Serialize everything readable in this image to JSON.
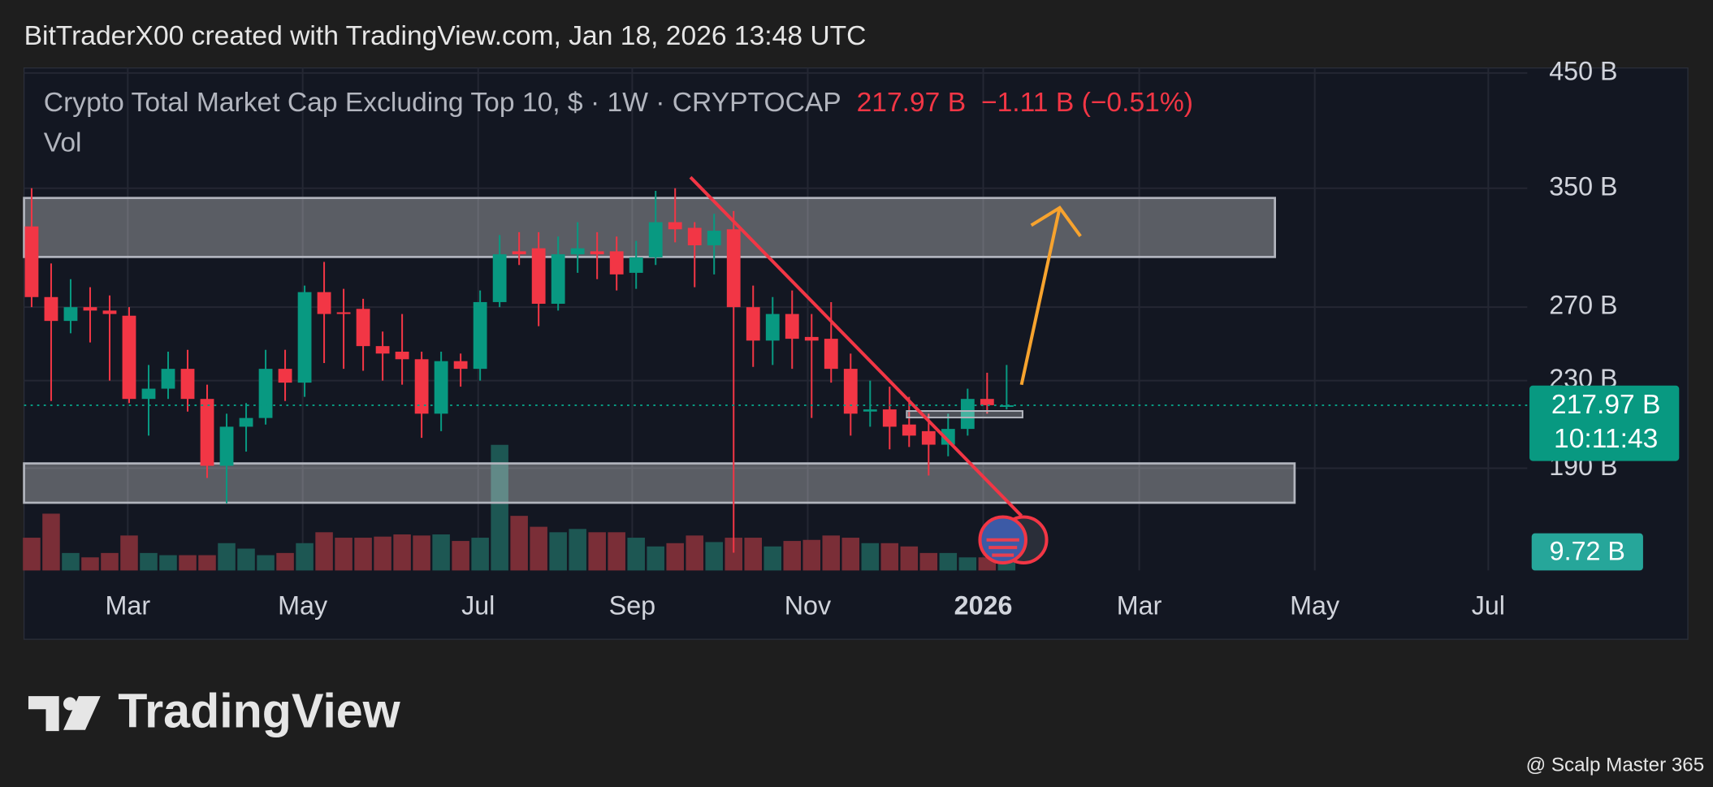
{
  "header": "BitTraderX00 created with TradingView.com, Jan 18, 2026 13:48 UTC",
  "logo": "TradingView",
  "watermark": "@ Scalp Master 365",
  "chart_data": {
    "type": "candlestick",
    "title": "Crypto Total Market Cap Excluding Top 10, $ · 1W · CRYPTOCAP",
    "price_label": "217.97 B",
    "change_label": "−1.11 B (−0.51%)",
    "volume_title": "Vol",
    "last_price_label": "217.97 B",
    "countdown": "10:11:43",
    "last_volume_label": "9.72 B",
    "up_color": "#089981",
    "down_color": "#f23645",
    "up_volume_color": "#1d5753",
    "down_volume_color": "#7a2e37",
    "log": true,
    "grid": true,
    "ylim": [
      152,
      455
    ],
    "yticks": [
      {
        "value": 190,
        "label": "190 B"
      },
      {
        "value": 230,
        "label": "230 B"
      },
      {
        "value": 270,
        "label": "270 B"
      },
      {
        "value": 350,
        "label": "350 B"
      },
      {
        "value": 450,
        "label": "450 B"
      }
    ],
    "xlim": [
      -0.39,
      76.7
    ],
    "xticks": [
      {
        "value": 4.93,
        "label": "Mar"
      },
      {
        "value": 13.9,
        "label": "May"
      },
      {
        "value": 22.9,
        "label": "Jul"
      },
      {
        "value": 30.8,
        "label": "Sep"
      },
      {
        "value": 39.8,
        "label": "Nov"
      },
      {
        "value": 48.8,
        "label": "2026"
      },
      {
        "value": 56.8,
        "label": "Mar"
      },
      {
        "value": 65.8,
        "label": "May"
      },
      {
        "value": 74.7,
        "label": "Jul"
      }
    ],
    "open": [
      322,
      276,
      262,
      270,
      268,
      265,
      221,
      226,
      236,
      221,
      191,
      208,
      212,
      236,
      229,
      279,
      267,
      269,
      248,
      245,
      241,
      214,
      240,
      236,
      273,
      305,
      307,
      272,
      303,
      305,
      305,
      291,
      301,
      325,
      321,
      309,
      320,
      270,
      251,
      266,
      253,
      252,
      236,
      215,
      216,
      209,
      206,
      200,
      207,
      221,
      217.2
    ],
    "high": [
      350,
      297,
      287,
      282,
      277,
      270,
      238,
      245,
      246,
      228,
      214,
      219,
      246,
      246,
      283,
      298,
      281,
      275,
      256,
      266,
      245,
      245,
      244,
      280,
      316,
      318,
      318,
      315,
      325,
      318,
      315,
      312,
      348,
      350,
      325,
      331,
      333,
      283,
      276,
      280,
      266,
      273,
      244,
      230,
      227,
      222,
      214,
      214,
      226,
      234,
      238
    ],
    "low": [
      270,
      220,
      255,
      250,
      230,
      219,
      204,
      221,
      215,
      186,
      176,
      197,
      209,
      220,
      222,
      239,
      236,
      235,
      230,
      228,
      203,
      206,
      227,
      230,
      270,
      296,
      259,
      268,
      291,
      287,
      280,
      281,
      296,
      311,
      282,
      290,
      158,
      237,
      238,
      236,
      212,
      229,
      204,
      208,
      198,
      199,
      187,
      195,
      204,
      214,
      216
    ],
    "close": [
      276,
      262,
      270,
      268,
      266,
      221,
      226,
      236,
      221,
      191,
      208,
      212,
      236,
      229,
      279,
      266,
      266,
      248,
      244,
      241,
      214,
      240,
      236,
      273,
      303,
      303,
      272,
      303,
      307,
      303,
      290,
      301,
      325,
      320,
      309,
      319,
      270,
      251,
      266,
      252,
      251,
      236,
      214,
      216,
      208,
      204,
      200,
      207,
      221,
      218,
      217.97
    ],
    "volume": [
      30,
      52,
      16,
      12,
      16,
      32,
      16,
      14,
      14,
      14,
      25,
      20,
      14,
      16,
      25,
      35,
      30,
      30,
      31,
      33,
      32,
      33,
      27,
      30,
      115,
      50,
      40,
      35,
      38,
      35,
      35,
      30,
      22,
      25,
      32,
      26,
      30,
      30,
      22,
      27,
      28,
      32,
      30,
      25,
      25,
      22,
      16,
      16,
      12,
      12,
      9.72
    ]
  }
}
